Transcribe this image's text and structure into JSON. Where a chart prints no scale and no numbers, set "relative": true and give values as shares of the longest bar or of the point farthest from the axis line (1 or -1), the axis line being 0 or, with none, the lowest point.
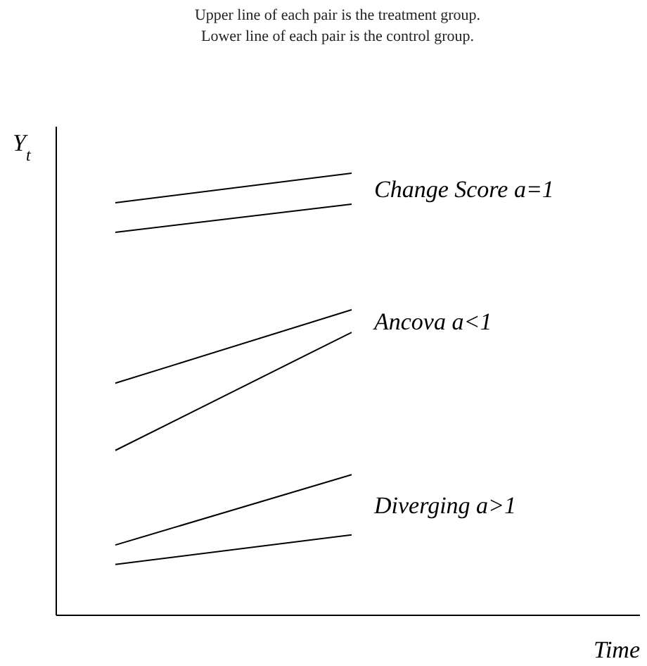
{
  "chart_data": {
    "type": "line",
    "title": "Upper line of each pair is the treatment group.",
    "subtitle": "Lower line of each pair is the control group.",
    "xlabel": "Time",
    "ylabel": "Y$_{t}$",
    "relative": true,
    "categories": [
      null,
      null
    ],
    "series": [
      {
        "color": "#000000",
        "values": [
          0.933,
          1.0
        ]
      },
      {
        "color": "#000000",
        "values": [
          0.866,
          0.93
        ]
      },
      {
        "color": "#000000",
        "values": [
          0.525,
          0.691
        ]
      },
      {
        "color": "#000000",
        "values": [
          0.373,
          0.64
        ]
      },
      {
        "color": "#000000",
        "values": [
          0.159,
          0.318
        ]
      },
      {
        "color": "#000000",
        "values": [
          0.115,
          0.182
        ]
      }
    ],
    "annotations": [
      "Change Score a=1",
      "Ancova a<1",
      "Diverging a>1"
    ],
    "marker": "none",
    "line_style": "solid",
    "grid": false
  }
}
